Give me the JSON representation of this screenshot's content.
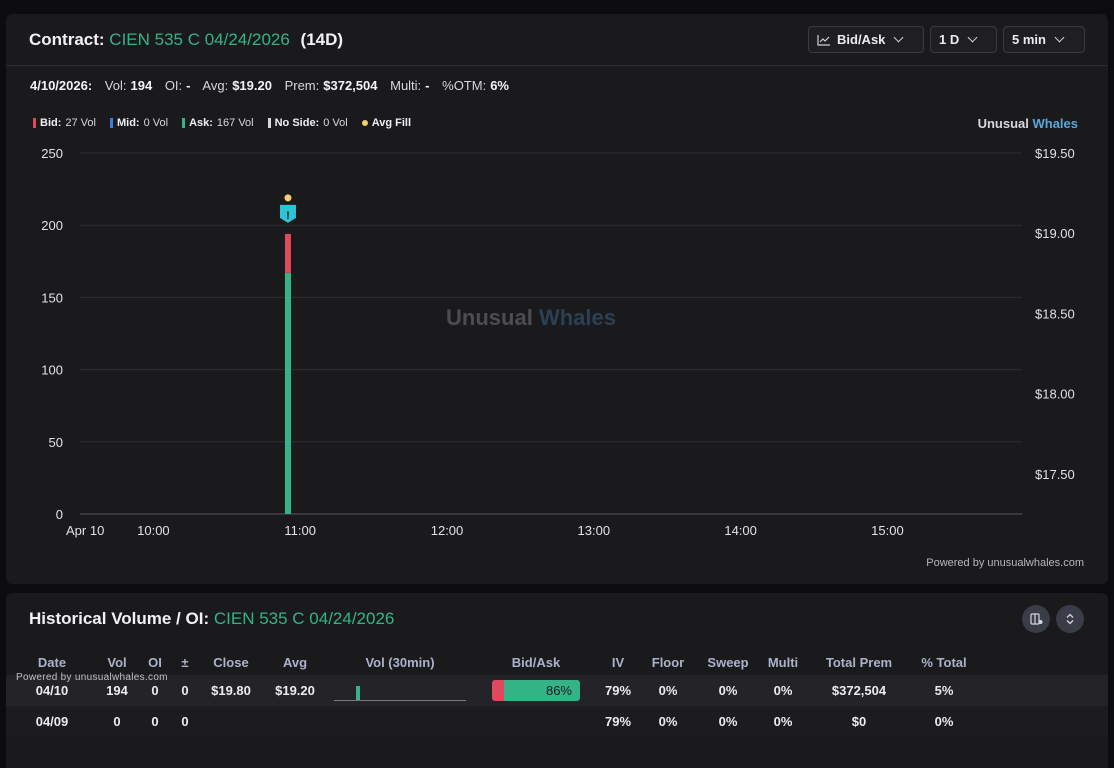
{
  "contract": {
    "label": "Contract:",
    "symbol": "CIEN 535 C 04/24/2026",
    "days": "(14D)"
  },
  "controls": {
    "chart_mode": "Bid/Ask",
    "range": "1 D",
    "interval": "5 min"
  },
  "stats": {
    "date": "4/10/2026:",
    "vol_label": "Vol:",
    "vol": "194",
    "oi_label": "OI:",
    "oi": "-",
    "avg_label": "Avg:",
    "avg": "$19.20",
    "prem_label": "Prem:",
    "prem": "$372,504",
    "multi_label": "Multi:",
    "multi": "-",
    "otm_label": "%OTM:",
    "otm": "6%"
  },
  "legend": {
    "bid_label": "Bid:",
    "bid_value": "27 Vol",
    "mid_label": "Mid:",
    "mid_value": "0 Vol",
    "ask_label": "Ask:",
    "ask_value": "167 Vol",
    "noside_label": "No Side:",
    "noside_value": "0 Vol",
    "avgfill_label": "Avg Fill"
  },
  "brand": {
    "part1": "Unusual",
    "part2": "Whales"
  },
  "watermark": {
    "part1": "Unusual",
    "part2": "Whales"
  },
  "powered_by": "Powered by unusualwhales.com",
  "colors": {
    "bid": "#e0485d",
    "mid": "#3b7ddd",
    "ask": "#34b387",
    "noside": "#d8d8dc",
    "avg_fill": "#f2cf6b",
    "accent_green": "#34b387",
    "marker": "#2ec4d6"
  },
  "chart_data": {
    "type": "bar",
    "x_tick_labels": [
      "Apr 10",
      "10:00",
      "11:00",
      "12:00",
      "13:00",
      "14:00",
      "15:00"
    ],
    "x_range": [
      "09:30",
      "15:55"
    ],
    "y_left_ticks": [
      0,
      50,
      100,
      150,
      200,
      250
    ],
    "y_left_range": [
      0,
      250
    ],
    "y_right_ticks": [
      "$17.50",
      "$18.00",
      "$18.50",
      "$19.00",
      "$19.50"
    ],
    "y_right_range": [
      17.25,
      19.5
    ],
    "grid": true,
    "legend_placement": "top-left",
    "series": [
      {
        "name": "Bid",
        "color": "#e0485d",
        "points": [
          {
            "x": "10:55",
            "y": 27
          }
        ]
      },
      {
        "name": "Mid",
        "color": "#3b7ddd",
        "points": []
      },
      {
        "name": "Ask",
        "color": "#34b387",
        "points": [
          {
            "x": "10:55",
            "y": 167
          }
        ]
      },
      {
        "name": "No Side",
        "color": "#d8d8dc",
        "points": []
      }
    ],
    "avg_fill": [
      {
        "x": "10:55",
        "y": 19.2
      }
    ],
    "marker": {
      "x": "10:55",
      "icon": "alert-flag-icon",
      "symbol": "!"
    }
  },
  "history": {
    "title": "Historical Volume / OI:",
    "symbol": "CIEN 535 C 04/24/2026",
    "powered_small": "Powered by unusualwhales.com",
    "columns": [
      "Date",
      "Vol",
      "OI",
      "±",
      "Close",
      "Avg",
      "Vol (30min)",
      "Bid/Ask",
      "IV",
      "Floor",
      "Sweep",
      "Multi",
      "Total Prem",
      "% Total"
    ],
    "rows": [
      {
        "date": "04/10",
        "vol": "194",
        "oi": "0",
        "change": "0",
        "close": "$19.80",
        "avg": "$19.20",
        "bidask_pct": "86%",
        "bidask_ask_fraction": 0.86,
        "iv": "79%",
        "floor": "0%",
        "sweep": "0%",
        "multi": "0%",
        "total_prem": "$372,504",
        "pct_total": "5%"
      },
      {
        "date": "04/09",
        "vol": "0",
        "oi": "0",
        "change": "0",
        "close": "",
        "avg": "",
        "bidask_pct": "",
        "iv": "79%",
        "floor": "0%",
        "sweep": "0%",
        "multi": "0%",
        "total_prem": "$0",
        "pct_total": "0%"
      }
    ]
  }
}
